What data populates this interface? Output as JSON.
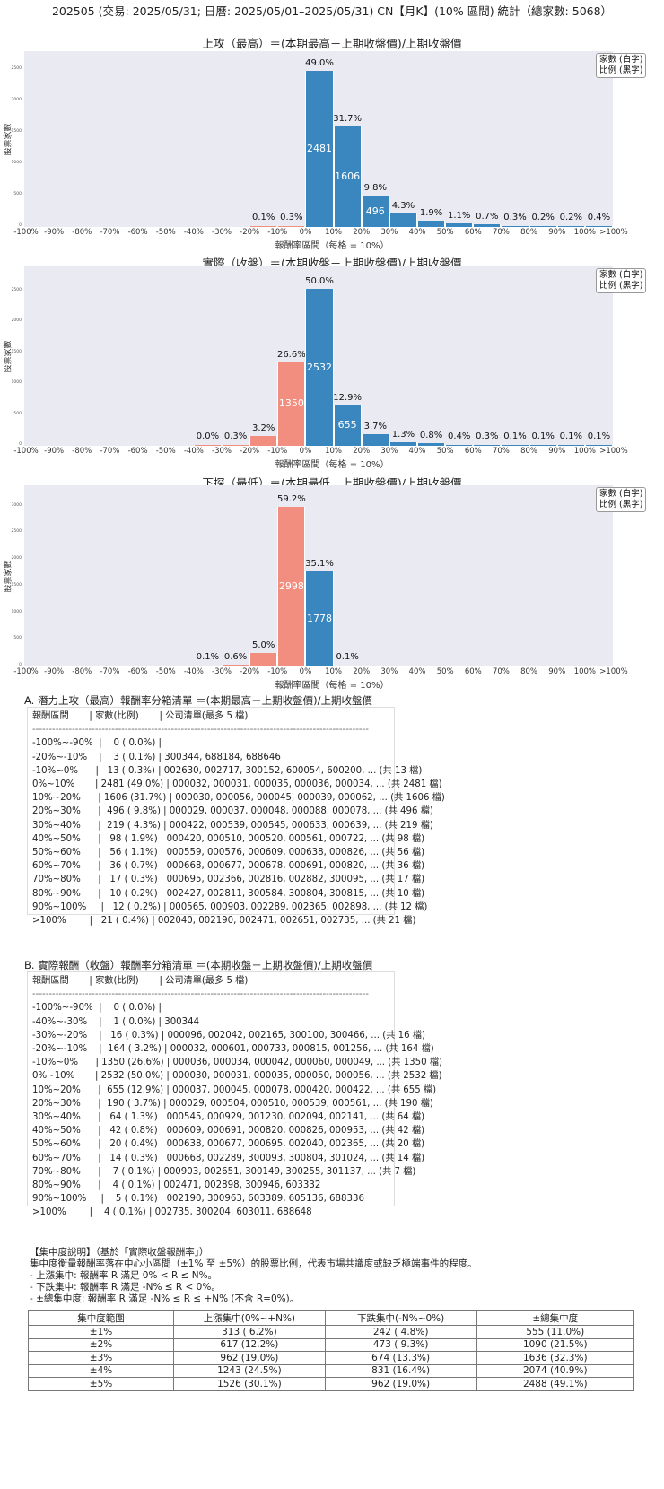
{
  "page_title": "202505 (交易: 2025/05/31; 日曆: 2025/05/01–2025/05/31) CN【月K】(10% 區間) 統計（總家數: 5068）",
  "common": {
    "ylabel": "股票家數",
    "xlabel": "報酬率區間（每格 = 10%）",
    "legend_line1": "家數 (白字)",
    "legend_line2": "比例 (黑字)",
    "x_ticks": [
      "-100%",
      "-90%",
      "-80%",
      "-70%",
      "-60%",
      "-50%",
      "-40%",
      "-30%",
      "-20%",
      "-10%",
      "0%",
      "10%",
      "20%",
      "30%",
      "40%",
      "50%",
      "60%",
      "70%",
      "80%",
      "90%",
      "100%",
      ">100%"
    ],
    "colors": {
      "positive": "#3a87bf",
      "negative": "#f28e80",
      "plot_bg": "#eaeaf2"
    }
  },
  "chart_data": [
    {
      "type": "bar",
      "title": "上攻（最高）＝(本期最高－上期收盤價)/上期收盤價",
      "xlabel": "報酬率區間（每格 = 10%）",
      "ylabel": "股票家數",
      "ylim": [
        0,
        2800
      ],
      "y_ticks": [
        0,
        500,
        1000,
        1500,
        2000,
        2500
      ],
      "categories": [
        "-100%~-90%",
        "-90%~-80%",
        "-80%~-70%",
        "-70%~-60%",
        "-60%~-50%",
        "-50%~-40%",
        "-40%~-30%",
        "-30%~-20%",
        "-20%~-10%",
        "-10%~0%",
        "0%~10%",
        "10%~20%",
        "20%~30%",
        "30%~40%",
        "40%~50%",
        "50%~60%",
        "60%~70%",
        "70%~80%",
        "80%~90%",
        "90%~100%",
        ">100%"
      ],
      "values": [
        0,
        0,
        0,
        0,
        0,
        0,
        0,
        0,
        3,
        13,
        2481,
        1606,
        496,
        219,
        98,
        56,
        36,
        17,
        10,
        12,
        21
      ],
      "percent_labels": [
        "",
        "",
        "",
        "",
        "",
        "",
        "",
        "",
        "0.1%",
        "0.3%",
        "49.0%",
        "31.7%",
        "9.8%",
        "4.3%",
        "1.9%",
        "1.1%",
        "0.7%",
        "0.3%",
        "0.2%",
        "0.2%",
        "0.4%"
      ],
      "legend": [
        "家數 (白字)",
        "比例 (黑字)"
      ],
      "legend_position": "upper right",
      "grid": false
    },
    {
      "type": "bar",
      "title": "實際（收盤）＝(本期收盤－上期收盤價)/上期收盤價",
      "xlabel": "報酬率區間（每格 = 10%）",
      "ylabel": "股票家數",
      "ylim": [
        0,
        2900
      ],
      "y_ticks": [
        0,
        500,
        1000,
        1500,
        2000,
        2500
      ],
      "categories": [
        "-100%~-90%",
        "-90%~-80%",
        "-80%~-70%",
        "-70%~-60%",
        "-60%~-50%",
        "-50%~-40%",
        "-40%~-30%",
        "-30%~-20%",
        "-20%~-10%",
        "-10%~0%",
        "0%~10%",
        "10%~20%",
        "20%~30%",
        "30%~40%",
        "40%~50%",
        "50%~60%",
        "60%~70%",
        "70%~80%",
        "80%~90%",
        "90%~100%",
        ">100%"
      ],
      "values": [
        0,
        0,
        0,
        0,
        0,
        0,
        1,
        16,
        164,
        1350,
        2532,
        655,
        190,
        64,
        42,
        20,
        14,
        7,
        4,
        5,
        4
      ],
      "percent_labels": [
        "",
        "",
        "",
        "",
        "",
        "",
        "0.0%",
        "0.3%",
        "3.2%",
        "26.6%",
        "50.0%",
        "12.9%",
        "3.7%",
        "1.3%",
        "0.8%",
        "0.4%",
        "0.3%",
        "0.1%",
        "0.1%",
        "0.1%",
        "0.1%"
      ],
      "legend": [
        "家數 (白字)",
        "比例 (黑字)"
      ],
      "legend_position": "upper right",
      "grid": false
    },
    {
      "type": "bar",
      "title": "下探（最低）＝(本期最低－上期收盤價)/上期收盤價",
      "xlabel": "報酬率區間（每格 = 10%）",
      "ylabel": "股票家數",
      "ylim": [
        0,
        3400
      ],
      "y_ticks": [
        0,
        500,
        1000,
        1500,
        2000,
        2500,
        3000
      ],
      "categories": [
        "-100%~-90%",
        "-90%~-80%",
        "-80%~-70%",
        "-70%~-60%",
        "-60%~-50%",
        "-50%~-40%",
        "-40%~-30%",
        "-30%~-20%",
        "-20%~-10%",
        "-10%~0%",
        "0%~10%",
        "10%~20%",
        "20%~30%",
        "30%~40%",
        "40%~50%",
        "50%~60%",
        "60%~70%",
        "70%~80%",
        "80%~90%",
        "90%~100%",
        ">100%"
      ],
      "values": [
        0,
        0,
        0,
        0,
        0,
        0,
        5,
        30,
        254,
        2998,
        1778,
        3,
        0,
        0,
        0,
        0,
        0,
        0,
        0,
        0,
        0
      ],
      "percent_labels": [
        "",
        "",
        "",
        "",
        "",
        "",
        "0.1%",
        "0.6%",
        "5.0%",
        "59.2%",
        "35.1%",
        "0.1%",
        "",
        "",
        "",
        "",
        "",
        "",
        "",
        "",
        ""
      ],
      "legend": [
        "家數 (白字)",
        "比例 (黑字)"
      ],
      "legend_position": "upper right",
      "grid": false
    }
  ],
  "section_a": {
    "title": "A. 潛力上攻（最高）報酬率分箱清單 ＝(本期最高－上期收盤價)/上期收盤價",
    "header": "報酬區間       | 家數(比例)       | 公司清單(最多 5 檔)",
    "divider": "------------------------------------------------------------------------------------------------------",
    "rows": [
      "-100%~-90%  |    0 ( 0.0%) |",
      "-20%~-10%    |    3 ( 0.1%) | 300344, 688184, 688646",
      "-10%~0%      |   13 ( 0.3%) | 002630, 002717, 300152, 600054, 600200, ... (共 13 檔)",
      "0%~10%       | 2481 (49.0%) | 000032, 000031, 000035, 000036, 000034, ... (共 2481 檔)",
      "10%~20%      | 1606 (31.7%) | 000030, 000056, 000045, 000039, 000062, ... (共 1606 檔)",
      "20%~30%      |  496 ( 9.8%) | 000029, 000037, 000048, 000088, 000078, ... (共 496 檔)",
      "30%~40%      |  219 ( 4.3%) | 000422, 000539, 000545, 000633, 000639, ... (共 219 檔)",
      "40%~50%      |   98 ( 1.9%) | 000420, 000510, 000520, 000561, 000722, ... (共 98 檔)",
      "50%~60%      |   56 ( 1.1%) | 000559, 000576, 000609, 000638, 000826, ... (共 56 檔)",
      "60%~70%      |   36 ( 0.7%) | 000668, 000677, 000678, 000691, 000820, ... (共 36 檔)",
      "70%~80%      |   17 ( 0.3%) | 000695, 002366, 002816, 002882, 300095, ... (共 17 檔)",
      "80%~90%      |   10 ( 0.2%) | 002427, 002811, 300584, 300804, 300815, ... (共 10 檔)",
      "90%~100%     |   12 ( 0.2%) | 000565, 000903, 002289, 002365, 002898, ... (共 12 檔)",
      ">100%        |   21 ( 0.4%) | 002040, 002190, 002471, 002651, 002735, ... (共 21 檔)"
    ]
  },
  "section_b": {
    "title": "B. 實際報酬（收盤）報酬率分箱清單 ＝(本期收盤－上期收盤價)/上期收盤價",
    "header": "報酬區間       | 家數(比例)       | 公司清單(最多 5 檔)",
    "divider": "------------------------------------------------------------------------------------------------------",
    "rows": [
      "-100%~-90%  |    0 ( 0.0%) |",
      "-40%~-30%    |    1 ( 0.0%) | 300344",
      "-30%~-20%    |   16 ( 0.3%) | 000096, 002042, 002165, 300100, 300466, ... (共 16 檔)",
      "-20%~-10%    |  164 ( 3.2%) | 000032, 000601, 000733, 000815, 001256, ... (共 164 檔)",
      "-10%~0%      | 1350 (26.6%) | 000036, 000034, 000042, 000060, 000049, ... (共 1350 檔)",
      "0%~10%       | 2532 (50.0%) | 000030, 000031, 000035, 000050, 000056, ... (共 2532 檔)",
      "10%~20%      |  655 (12.9%) | 000037, 000045, 000078, 000420, 000422, ... (共 655 檔)",
      "20%~30%      |  190 ( 3.7%) | 000029, 000504, 000510, 000539, 000561, ... (共 190 檔)",
      "30%~40%      |   64 ( 1.3%) | 000545, 000929, 001230, 002094, 002141, ... (共 64 檔)",
      "40%~50%      |   42 ( 0.8%) | 000609, 000691, 000820, 000826, 000953, ... (共 42 檔)",
      "50%~60%      |   20 ( 0.4%) | 000638, 000677, 000695, 002040, 002365, ... (共 20 檔)",
      "60%~70%      |   14 ( 0.3%) | 000668, 002289, 300093, 300804, 301024, ... (共 14 檔)",
      "70%~80%      |    7 ( 0.1%) | 000903, 002651, 300149, 300255, 301137, ... (共 7 檔)",
      "80%~90%      |    4 ( 0.1%) | 002471, 002898, 300946, 603332",
      "90%~100%     |    5 ( 0.1%) | 002190, 300963, 603389, 605136, 688336",
      ">100%        |    4 ( 0.1%) | 002735, 300204, 603011, 688648"
    ]
  },
  "concentration": {
    "heading": "【集中度說明】（基於「實際收盤報酬率」）",
    "description": "集中度衡量報酬率落在中心小區間（±1% 至 ±5%）的股票比例，代表市場共識度或缺乏極端事件的程度。",
    "bullets": [
      "- 上漲集中: 報酬率 R 滿足 0% < R ≤ N%。",
      "- 下跌集中: 報酬率 R 滿足 -N% ≤ R < 0%。",
      "- ±總集中度: 報酬率 R 滿足 -N% ≤ R ≤ +N% (不含 R=0%)。"
    ],
    "table": {
      "headers": [
        "集中度範圍",
        "上漲集中(0%~+N%)",
        "下跌集中(-N%~0%)",
        "±總集中度"
      ],
      "rows": [
        [
          "±1%",
          "313 ( 6.2%)",
          "242 ( 4.8%)",
          "555 (11.0%)"
        ],
        [
          "±2%",
          "617 (12.2%)",
          "473 ( 9.3%)",
          "1090 (21.5%)"
        ],
        [
          "±3%",
          "962 (19.0%)",
          "674 (13.3%)",
          "1636 (32.3%)"
        ],
        [
          "±4%",
          "1243 (24.5%)",
          "831 (16.4%)",
          "2074 (40.9%)"
        ],
        [
          "±5%",
          "1526 (30.1%)",
          "962 (19.0%)",
          "2488 (49.1%)"
        ]
      ]
    }
  }
}
